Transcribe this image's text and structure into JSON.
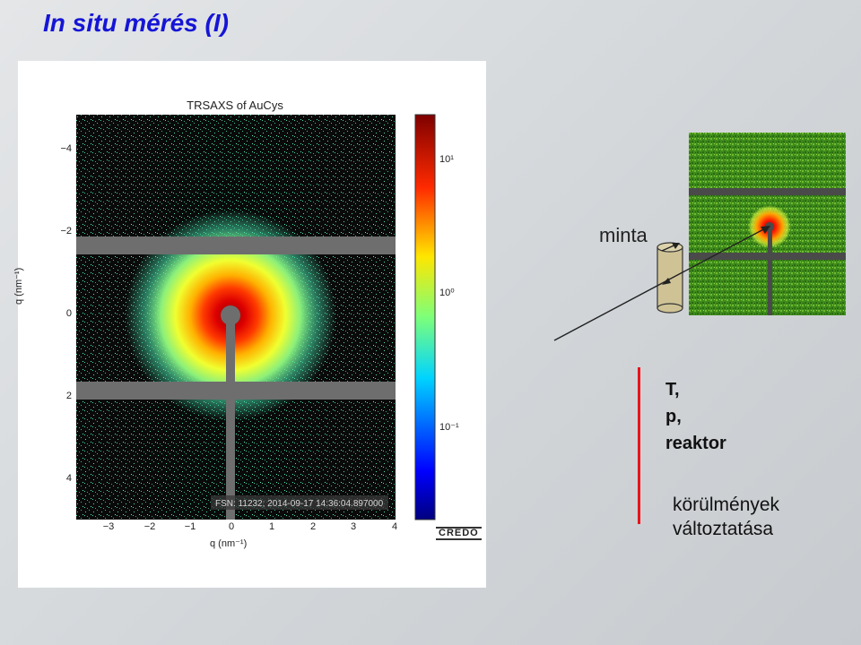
{
  "slide": {
    "title": "In situ mérés (I)"
  },
  "figure": {
    "title": "TRSAXS of AuCys",
    "x_axis": {
      "label": "q (nm⁻¹)",
      "ticks": [
        "−3",
        "−2",
        "−1",
        "0",
        "1",
        "2",
        "3",
        "4"
      ]
    },
    "y_axis": {
      "label": "q (nm⁻¹)",
      "ticks": [
        "−4",
        "−2",
        "0",
        "2",
        "4"
      ]
    },
    "colorbar": {
      "ticks": [
        "10¹",
        "10⁰",
        "10⁻¹"
      ]
    },
    "annotation": "FSN: 11232; 2014-09-17 14:36:04.897000",
    "logo": "CREDO"
  },
  "chart_data": {
    "type": "heatmap",
    "title": "TRSAXS of AuCys",
    "xlabel": "q (nm⁻¹)",
    "ylabel": "q (nm⁻¹)",
    "xlim": [
      -3.7,
      4.1
    ],
    "ylim": [
      -4.6,
      5.0
    ],
    "scale": "log",
    "colorbar_range": [
      0.05,
      30
    ],
    "colormap": "jet"
  },
  "sample": {
    "label": "minta"
  },
  "conditions": {
    "line1": "T,",
    "line2": "p,",
    "line3": "reaktor"
  },
  "change": {
    "line1": "körülmények",
    "line2": "változtatása"
  },
  "colors": {
    "title": "#1515d6",
    "accent_bar": "#e8141a",
    "sample_tube": "#cfc396"
  }
}
